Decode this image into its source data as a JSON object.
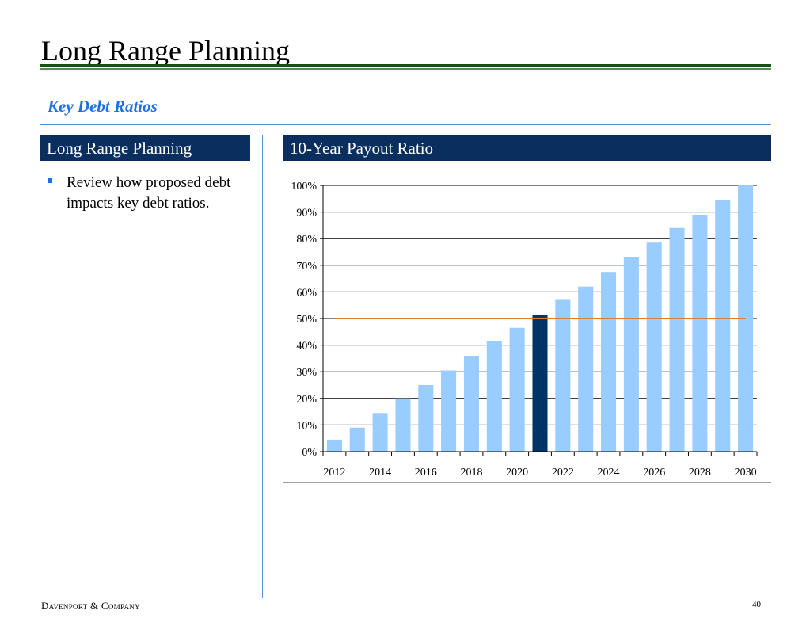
{
  "slide": {
    "title": "Long Range Planning",
    "subtitle": "Key Debt Ratios",
    "left_panel_header": "Long Range Planning",
    "right_panel_header": "10-Year Payout Ratio",
    "bullets": [
      "Review how proposed debt impacts key debt ratios."
    ],
    "footer_company": "Davenport & Company",
    "page_number": "40"
  },
  "colors": {
    "header_bg": "#0a2f5e",
    "subtitle": "#1f6fe0",
    "bar": "#99ccff",
    "bar_highlight": "#003366",
    "reference_line": "#e07a2e",
    "title_rule": "#1a4d1a"
  },
  "chart_data": {
    "type": "bar",
    "categories": [
      "2012",
      "2013",
      "2014",
      "2015",
      "2016",
      "2017",
      "2018",
      "2019",
      "2020",
      "2021",
      "2022",
      "2023",
      "2024",
      "2025",
      "2026",
      "2027",
      "2028",
      "2029",
      "2030"
    ],
    "x_tick_labels": [
      "2012",
      "2014",
      "2016",
      "2018",
      "2020",
      "2022",
      "2024",
      "2026",
      "2028",
      "2030"
    ],
    "values": [
      4.5,
      9,
      14.5,
      20,
      25,
      30.5,
      36,
      41.5,
      46.5,
      51.5,
      57,
      62,
      67.5,
      73,
      78.5,
      84,
      89,
      94.5,
      100
    ],
    "highlight_category": "2021",
    "reference_line": 50,
    "ylim": [
      0,
      100
    ],
    "y_ticks": [
      0,
      10,
      20,
      30,
      40,
      50,
      60,
      70,
      80,
      90,
      100
    ],
    "y_tick_suffix": "%",
    "grid": true,
    "title": "",
    "xlabel": "",
    "ylabel": ""
  }
}
